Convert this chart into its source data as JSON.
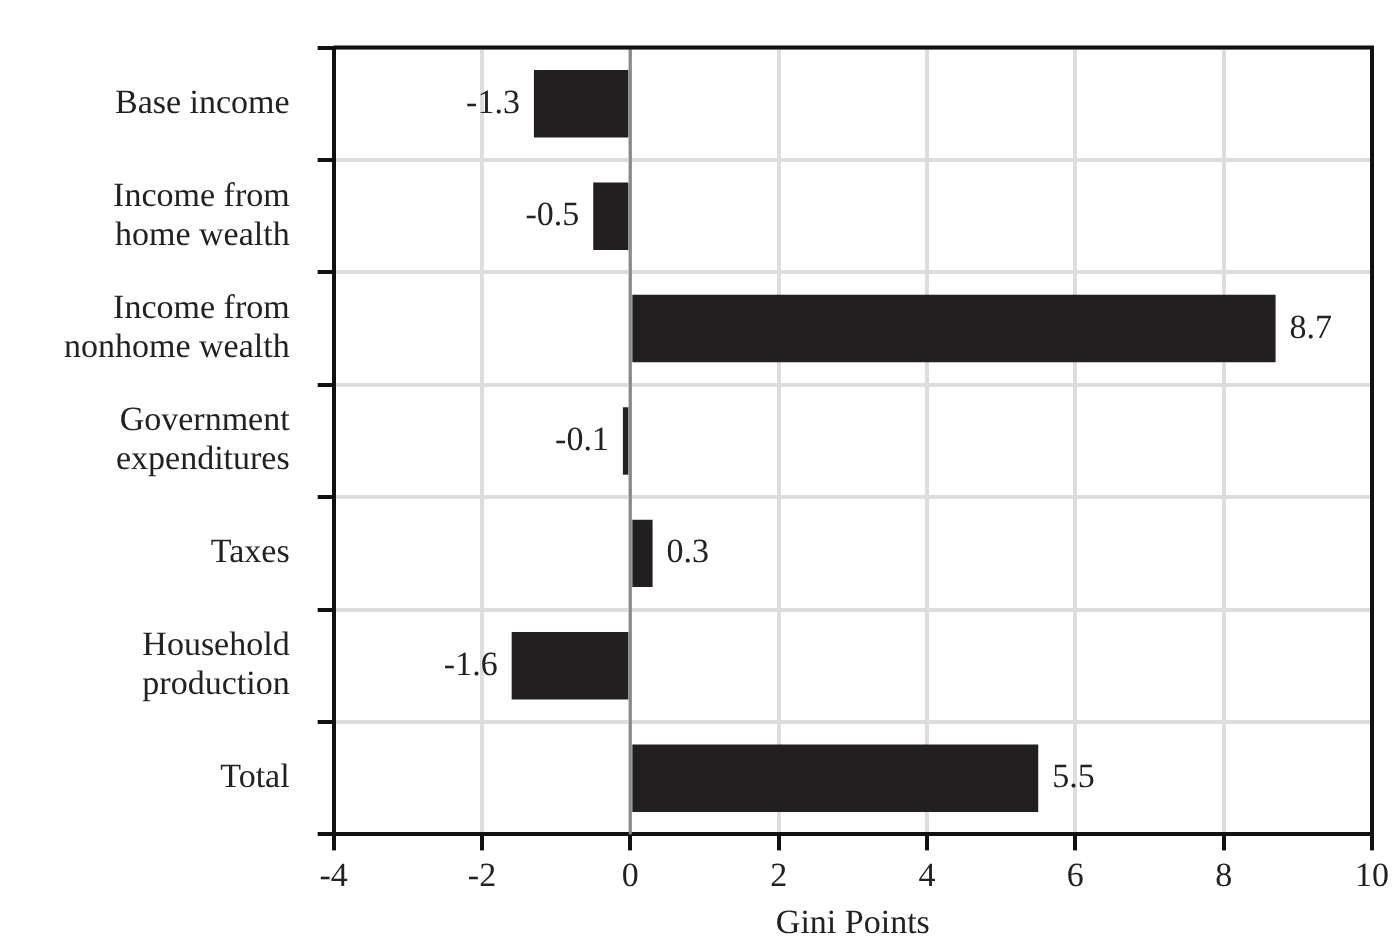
{
  "chart_data": {
    "type": "bar",
    "orientation": "horizontal",
    "xlabel": "Gini Points",
    "categories": [
      "Base income",
      "Income from home wealth",
      "Income from nonhome wealth",
      "Government expenditures",
      "Taxes",
      "Household production",
      "Total"
    ],
    "values": [
      -1.3,
      -0.5,
      8.7,
      -0.1,
      0.3,
      -1.6,
      5.5
    ],
    "color": "#231f20",
    "data_labels": true,
    "xlim": [
      -4,
      10
    ],
    "xticks": [
      -4,
      -2,
      0,
      2,
      4,
      6,
      8,
      10
    ],
    "grid": true,
    "ref_lines": [
      {
        "axis": "x",
        "value": 0,
        "color": "#888888"
      }
    ]
  }
}
